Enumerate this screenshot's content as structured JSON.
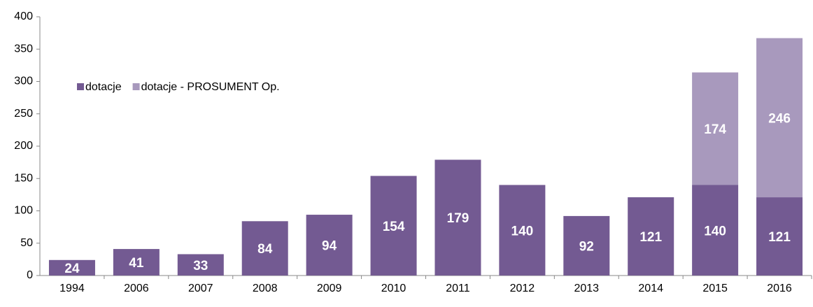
{
  "chart_data": {
    "type": "stacked_bar",
    "categories": [
      "1994",
      "2006",
      "2007",
      "2008",
      "2009",
      "2010",
      "2011",
      "2012",
      "2013",
      "2014",
      "2015",
      "2016"
    ],
    "series": [
      {
        "name": "dotacje",
        "color": "#735a92",
        "values": [
          24,
          41,
          33,
          84,
          94,
          154,
          179,
          140,
          92,
          121,
          140,
          121
        ]
      },
      {
        "name": "dotacje - PROSUMENT Op.",
        "color": "#a899bd",
        "values": [
          null,
          null,
          null,
          null,
          null,
          null,
          null,
          null,
          null,
          null,
          174,
          246
        ]
      }
    ],
    "ylim": [
      0,
      400
    ],
    "yticks": [
      0,
      50,
      100,
      150,
      200,
      250,
      300,
      350,
      400
    ],
    "legend": "upper left"
  }
}
